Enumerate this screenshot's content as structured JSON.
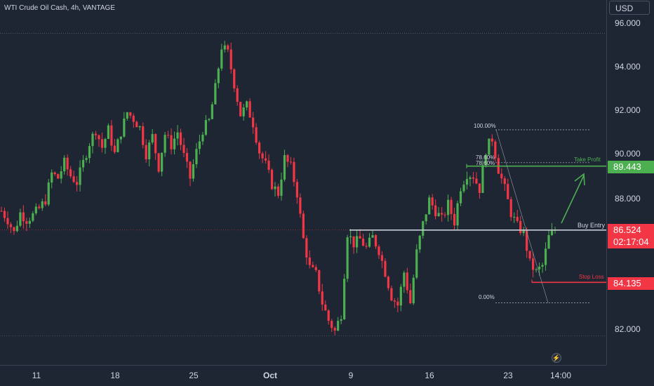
{
  "title": "WTI Crude Oil Cash, 4h, VANTAGE",
  "currency": "USD",
  "colors": {
    "background": "#1e2634",
    "up": "#4caf50",
    "down": "#f23645",
    "text": "#d1d4dc",
    "white_line": "#c8cbd3",
    "green_line": "#4caf50",
    "red_line": "#f23645"
  },
  "y_axis": {
    "labels": [
      "96.000",
      "94.000",
      "92.000",
      "90.000",
      "88.000",
      "82.000"
    ]
  },
  "x_axis": {
    "labels": [
      "11",
      "18",
      "25",
      "Oct",
      "9",
      "16",
      "23",
      "14:00"
    ]
  },
  "price_tags": {
    "take_profit": {
      "value": "89.443",
      "color": "#4caf50"
    },
    "current": {
      "value": "86.524",
      "countdown": "02:17:04",
      "color": "#f23645"
    },
    "stop_loss": {
      "value": "84.135",
      "color": "#f23645"
    }
  },
  "annotations": {
    "buy_entry": "Buy Entry",
    "take_profit": "Take Profit",
    "stop_loss": "Stop Loss",
    "fib_100": "100.00%",
    "fib_786a": "78.60%",
    "fib_786b": "78.60%",
    "fib_0": "0.00%"
  },
  "chart_data": {
    "type": "candlestick",
    "title": "WTI Crude Oil Cash, 4h, VANTAGE",
    "ylim": [
      81.1,
      96.6
    ],
    "y_ticks": [
      82,
      88,
      90,
      92,
      94,
      96
    ],
    "levels": {
      "take_profit": 89.443,
      "buy_entry": 86.524,
      "stop_loss": 84.135,
      "fib_100": 91.1,
      "fib_786": 89.6,
      "fib_0": 83.2,
      "upper_dotted": 95.5,
      "lower_dotted": 81.7
    },
    "close_path": [
      87.4,
      87.0,
      86.4,
      87.3,
      87.0,
      87.2,
      87.5,
      87.9,
      89.1,
      88.9,
      89.6,
      89.0,
      88.7,
      89.6,
      90.5,
      91.1,
      90.3,
      91.1,
      90.0,
      91.0,
      91.9,
      91.6,
      91.2,
      90.0,
      90.8,
      89.4,
      90.9,
      90.4,
      91.0,
      89.9,
      88.9,
      90.1,
      91.1,
      91.5,
      93.0,
      94.9,
      94.6,
      93.2,
      91.8,
      92.2,
      91.4,
      90.1,
      89.5,
      88.6,
      88.2,
      89.8,
      89.4,
      88.2,
      86.1,
      84.8,
      84.5,
      83.2,
      82.4,
      81.9,
      82.7,
      86.4,
      85.9,
      86.1,
      85.7,
      86.2,
      85.6,
      84.6,
      83.5,
      83.1,
      84.6,
      83.2,
      85.5,
      86.8,
      87.9,
      87.4,
      87.0,
      87.7,
      86.9,
      88.5,
      89.1,
      89.0,
      88.4,
      90.2,
      90.7,
      89.3,
      88.4,
      87.3,
      86.7,
      86.4,
      85.0,
      84.6,
      84.9,
      86.2,
      86.5
    ],
    "candles_shown": 177
  }
}
